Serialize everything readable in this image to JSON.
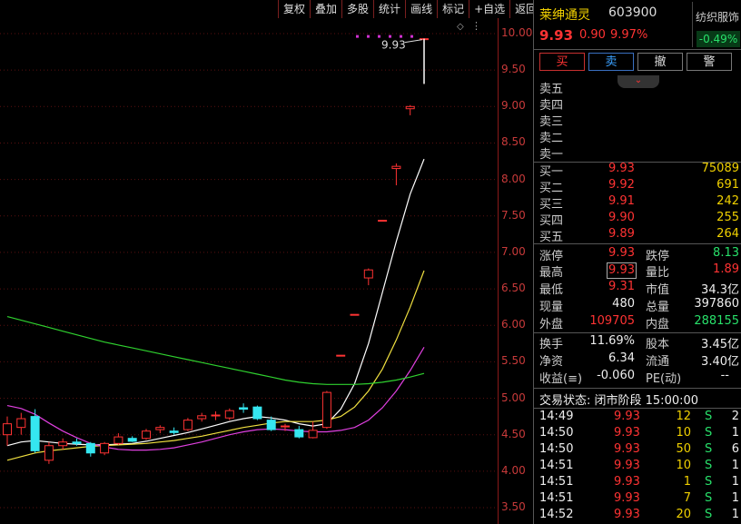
{
  "toolbar": {
    "items": [
      "复权",
      "叠加",
      "多股",
      "统计",
      "画线",
      "标记",
      "+自选",
      "返回"
    ]
  },
  "chart_data": {
    "type": "candlestick",
    "y_ticks": [
      "10.00",
      "9.50",
      "9.00",
      "8.50",
      "8.00",
      "7.50",
      "7.00",
      "6.50",
      "6.00",
      "5.50",
      "5.00",
      "4.50",
      "4.00",
      "3.50"
    ],
    "ylim": [
      3.5,
      10.0
    ],
    "annotation": "9.93",
    "candles": [
      {
        "o": 4.5,
        "h": 4.75,
        "l": 4.35,
        "c": 4.65
      },
      {
        "o": 4.6,
        "h": 4.8,
        "l": 4.5,
        "c": 4.72
      },
      {
        "o": 4.75,
        "h": 4.85,
        "l": 4.25,
        "c": 4.28
      },
      {
        "o": 4.15,
        "h": 4.4,
        "l": 4.1,
        "c": 4.35
      },
      {
        "o": 4.35,
        "h": 4.45,
        "l": 4.3,
        "c": 4.4
      },
      {
        "o": 4.4,
        "h": 4.45,
        "l": 4.35,
        "c": 4.38
      },
      {
        "o": 4.38,
        "h": 4.4,
        "l": 4.2,
        "c": 4.25
      },
      {
        "o": 4.25,
        "h": 4.4,
        "l": 4.22,
        "c": 4.38
      },
      {
        "o": 4.38,
        "h": 4.52,
        "l": 4.36,
        "c": 4.47
      },
      {
        "o": 4.45,
        "h": 4.48,
        "l": 4.4,
        "c": 4.41
      },
      {
        "o": 4.45,
        "h": 4.58,
        "l": 4.43,
        "c": 4.55
      },
      {
        "o": 4.57,
        "h": 4.63,
        "l": 4.52,
        "c": 4.6
      },
      {
        "o": 4.55,
        "h": 4.6,
        "l": 4.5,
        "c": 4.53
      },
      {
        "o": 4.57,
        "h": 4.73,
        "l": 4.55,
        "c": 4.7
      },
      {
        "o": 4.72,
        "h": 4.8,
        "l": 4.68,
        "c": 4.76
      },
      {
        "o": 4.77,
        "h": 4.82,
        "l": 4.7,
        "c": 4.77
      },
      {
        "o": 4.73,
        "h": 4.86,
        "l": 4.7,
        "c": 4.83
      },
      {
        "o": 4.87,
        "h": 4.93,
        "l": 4.8,
        "c": 4.85
      },
      {
        "o": 4.88,
        "h": 4.9,
        "l": 4.7,
        "c": 4.72
      },
      {
        "o": 4.7,
        "h": 4.75,
        "l": 4.55,
        "c": 4.57
      },
      {
        "o": 4.62,
        "h": 4.65,
        "l": 4.55,
        "c": 4.62
      },
      {
        "o": 4.57,
        "h": 4.62,
        "l": 4.45,
        "c": 4.47
      },
      {
        "o": 4.46,
        "h": 4.68,
        "l": 4.45,
        "c": 4.56
      },
      {
        "o": 4.6,
        "h": 5.1,
        "l": 4.58,
        "c": 5.08
      },
      {
        "o": 5.59,
        "h": 5.59,
        "l": 5.59,
        "c": 5.59
      },
      {
        "o": 6.15,
        "h": 6.15,
        "l": 6.15,
        "c": 6.15
      },
      {
        "o": 6.65,
        "h": 6.78,
        "l": 6.55,
        "c": 6.76
      },
      {
        "o": 7.44,
        "h": 7.44,
        "l": 7.44,
        "c": 7.44
      },
      {
        "o": 8.15,
        "h": 8.22,
        "l": 7.92,
        "c": 8.18
      },
      {
        "o": 8.97,
        "h": 9.02,
        "l": 8.88,
        "c": 9.0
      },
      {
        "o": 9.93,
        "h": 9.93,
        "l": 9.31,
        "c": 9.93
      }
    ],
    "ma_lines": [
      {
        "color": "#ffffff",
        "values": [
          4.35,
          4.4,
          4.42,
          4.4,
          4.38,
          4.37,
          4.36,
          4.36,
          4.37,
          4.38,
          4.41,
          4.45,
          4.49,
          4.53,
          4.58,
          4.63,
          4.68,
          4.72,
          4.75,
          4.73,
          4.7,
          4.65,
          4.62,
          4.65,
          4.85,
          5.2,
          5.75,
          6.45,
          7.15,
          7.8,
          8.28
        ]
      },
      {
        "color": "#f0e040",
        "values": [
          4.15,
          4.2,
          4.25,
          4.28,
          4.3,
          4.32,
          4.34,
          4.35,
          4.36,
          4.37,
          4.38,
          4.4,
          4.42,
          4.45,
          4.48,
          4.52,
          4.56,
          4.6,
          4.63,
          4.66,
          4.68,
          4.68,
          4.68,
          4.7,
          4.75,
          4.88,
          5.1,
          5.4,
          5.8,
          6.25,
          6.75
        ]
      },
      {
        "color": "#e040e0",
        "values": [
          4.9,
          4.86,
          4.78,
          4.66,
          4.55,
          4.46,
          4.38,
          4.33,
          4.3,
          4.29,
          4.29,
          4.3,
          4.32,
          4.36,
          4.4,
          4.45,
          4.5,
          4.54,
          4.57,
          4.58,
          4.57,
          4.55,
          4.54,
          4.54,
          4.56,
          4.6,
          4.7,
          4.87,
          5.1,
          5.38,
          5.7
        ]
      },
      {
        "color": "#2fd12f",
        "values": [
          6.12,
          6.07,
          6.02,
          5.97,
          5.92,
          5.87,
          5.82,
          5.77,
          5.73,
          5.69,
          5.65,
          5.61,
          5.57,
          5.53,
          5.49,
          5.45,
          5.41,
          5.37,
          5.33,
          5.29,
          5.25,
          5.22,
          5.2,
          5.19,
          5.19,
          5.19,
          5.2,
          5.22,
          5.25,
          5.29,
          5.34
        ]
      }
    ]
  },
  "quote": {
    "name": "莱绅通灵",
    "code": "603900",
    "price": "9.93",
    "change": "0.90",
    "change_pct": "9.97%",
    "sector_name": "纺织服饰",
    "sector_change": "-0.49%"
  },
  "buttons": {
    "buy": "买",
    "sell": "卖",
    "cancel": "撤",
    "alert": "警"
  },
  "expand_glyph": "⌄",
  "asks": [
    {
      "label": "卖五",
      "price": "",
      "volume": ""
    },
    {
      "label": "卖四",
      "price": "",
      "volume": ""
    },
    {
      "label": "卖三",
      "price": "",
      "volume": ""
    },
    {
      "label": "卖二",
      "price": "",
      "volume": ""
    },
    {
      "label": "卖一",
      "price": "",
      "volume": ""
    }
  ],
  "bids": [
    {
      "label": "买一",
      "price": "9.93",
      "volume": "75089"
    },
    {
      "label": "买二",
      "price": "9.92",
      "volume": "691"
    },
    {
      "label": "买三",
      "price": "9.91",
      "volume": "242"
    },
    {
      "label": "买四",
      "price": "9.90",
      "volume": "255"
    },
    {
      "label": "买五",
      "price": "9.89",
      "volume": "264"
    }
  ],
  "stats": {
    "limit_up_label": "涨停",
    "limit_up": "9.93",
    "limit_down_label": "跌停",
    "limit_down": "8.13",
    "high_label": "最高",
    "high": "9.93",
    "vol_ratio_label": "量比",
    "vol_ratio": "1.89",
    "low_label": "最低",
    "low": "9.31",
    "mkt_cap_label": "市值",
    "mkt_cap": "34.3亿",
    "cur_vol_label": "现量",
    "cur_vol": "480",
    "total_vol_label": "总量",
    "total_vol": "397860",
    "outer_label": "外盘",
    "outer": "109705",
    "inner_label": "内盘",
    "inner": "288155",
    "turnover_label": "换手",
    "turnover": "11.69%",
    "shares_label": "股本",
    "shares": "3.45亿",
    "nav_label": "净资",
    "nav": "6.34",
    "float_label": "流通",
    "float": "3.40亿",
    "eps_label": "收益(≡)",
    "eps": "-0.060",
    "pe_label": "PE(动)",
    "pe": "--"
  },
  "status": {
    "label": "交易状态: 闭市阶段 15:00:00"
  },
  "trades": [
    {
      "time": "14:49",
      "price": "9.93",
      "vol": "12",
      "side": "S",
      "num": "2"
    },
    {
      "time": "14:50",
      "price": "9.93",
      "vol": "10",
      "side": "S",
      "num": "1"
    },
    {
      "time": "14:50",
      "price": "9.93",
      "vol": "50",
      "side": "S",
      "num": "6"
    },
    {
      "time": "14:51",
      "price": "9.93",
      "vol": "10",
      "side": "S",
      "num": "1"
    },
    {
      "time": "14:51",
      "price": "9.93",
      "vol": "1",
      "side": "S",
      "num": "1"
    },
    {
      "time": "14:51",
      "price": "9.93",
      "vol": "7",
      "side": "S",
      "num": "1"
    },
    {
      "time": "14:52",
      "price": "9.93",
      "vol": "20",
      "side": "S",
      "num": "1"
    }
  ]
}
